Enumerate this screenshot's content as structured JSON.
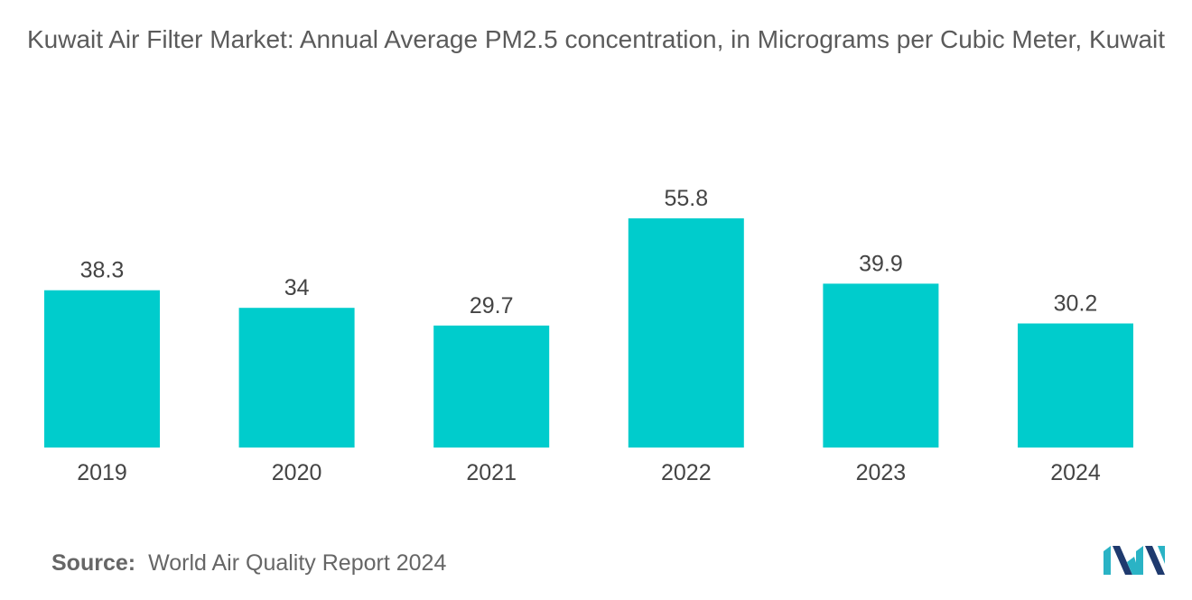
{
  "chart_data": {
    "type": "bar",
    "title": "Kuwait Air Filter Market: Annual Average PM2.5 concentration, in Micrograms per Cubic Meter, Kuwait",
    "categories": [
      "2019",
      "2020",
      "2021",
      "2022",
      "2023",
      "2024"
    ],
    "values": [
      38.3,
      34,
      29.7,
      55.8,
      39.9,
      30.2
    ],
    "value_labels": [
      "38.3",
      "34",
      "29.7",
      "55.8",
      "39.9",
      "30.2"
    ],
    "xlabel": "",
    "ylabel": "",
    "ylim": [
      0,
      55.8
    ],
    "grid": false,
    "legend": "none",
    "bar_color": "#00cccc"
  },
  "source": {
    "label": "Source:",
    "text": "World Air Quality Report 2024"
  },
  "logo": {
    "icon": "mordor-intelligence-logo-icon",
    "colors": [
      "#2ab3c5",
      "#1f3a6e"
    ]
  }
}
